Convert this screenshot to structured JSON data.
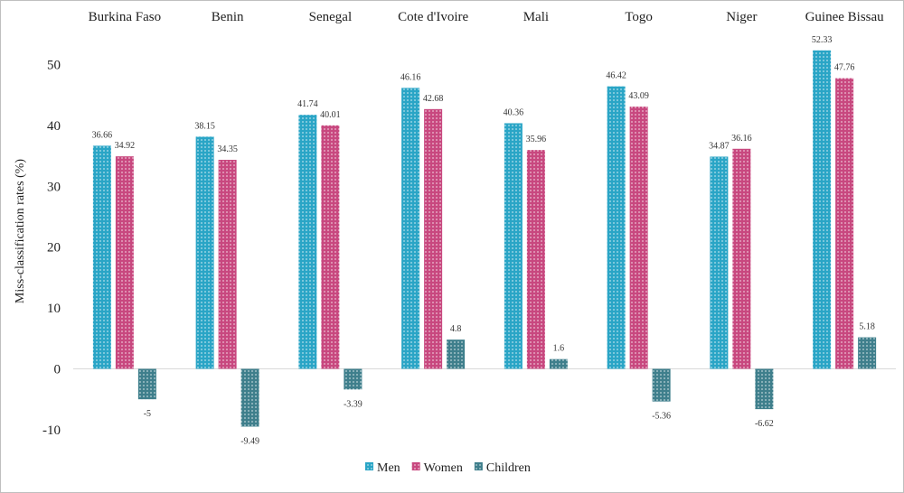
{
  "chart_data": {
    "type": "bar",
    "title": "",
    "xlabel": "",
    "ylabel": "Miss-classification rates (%)",
    "ylim": [
      -10,
      55
    ],
    "yticks": [
      -10,
      0,
      10,
      20,
      30,
      40,
      50
    ],
    "grid": false,
    "legend_position": "bottom",
    "categories": [
      "Burkina Faso",
      "Benin",
      "Senegal",
      "Cote d'Ivoire",
      "Mali",
      "Togo",
      "Niger",
      "Guinee Bissau"
    ],
    "series": [
      {
        "name": "Men",
        "color": "#2aa5c6",
        "values": [
          36.66,
          38.15,
          41.74,
          46.16,
          40.36,
          46.42,
          34.87,
          52.33
        ]
      },
      {
        "name": "Women",
        "color": "#c8487f",
        "values": [
          34.92,
          34.35,
          40.01,
          42.68,
          35.96,
          43.09,
          36.16,
          47.76
        ]
      },
      {
        "name": "Children",
        "color": "#3f7f8c",
        "values": [
          -5,
          -9.49,
          -3.39,
          4.8,
          1.6,
          -5.36,
          -6.62,
          5.18
        ]
      }
    ],
    "data_label_text": [
      [
        "36.66",
        "38.15",
        "41.74",
        "46.16",
        "40.36",
        "46.42",
        "34.87",
        "52.33"
      ],
      [
        "34.92",
        "34.35",
        "40.01",
        "42.68",
        "35.96",
        "43.09",
        "36.16",
        "47.76"
      ],
      [
        "-5",
        "-9.49",
        "-3.39",
        "4.8",
        "1.6",
        "-5.36",
        "-6.62",
        "5.18"
      ]
    ]
  }
}
